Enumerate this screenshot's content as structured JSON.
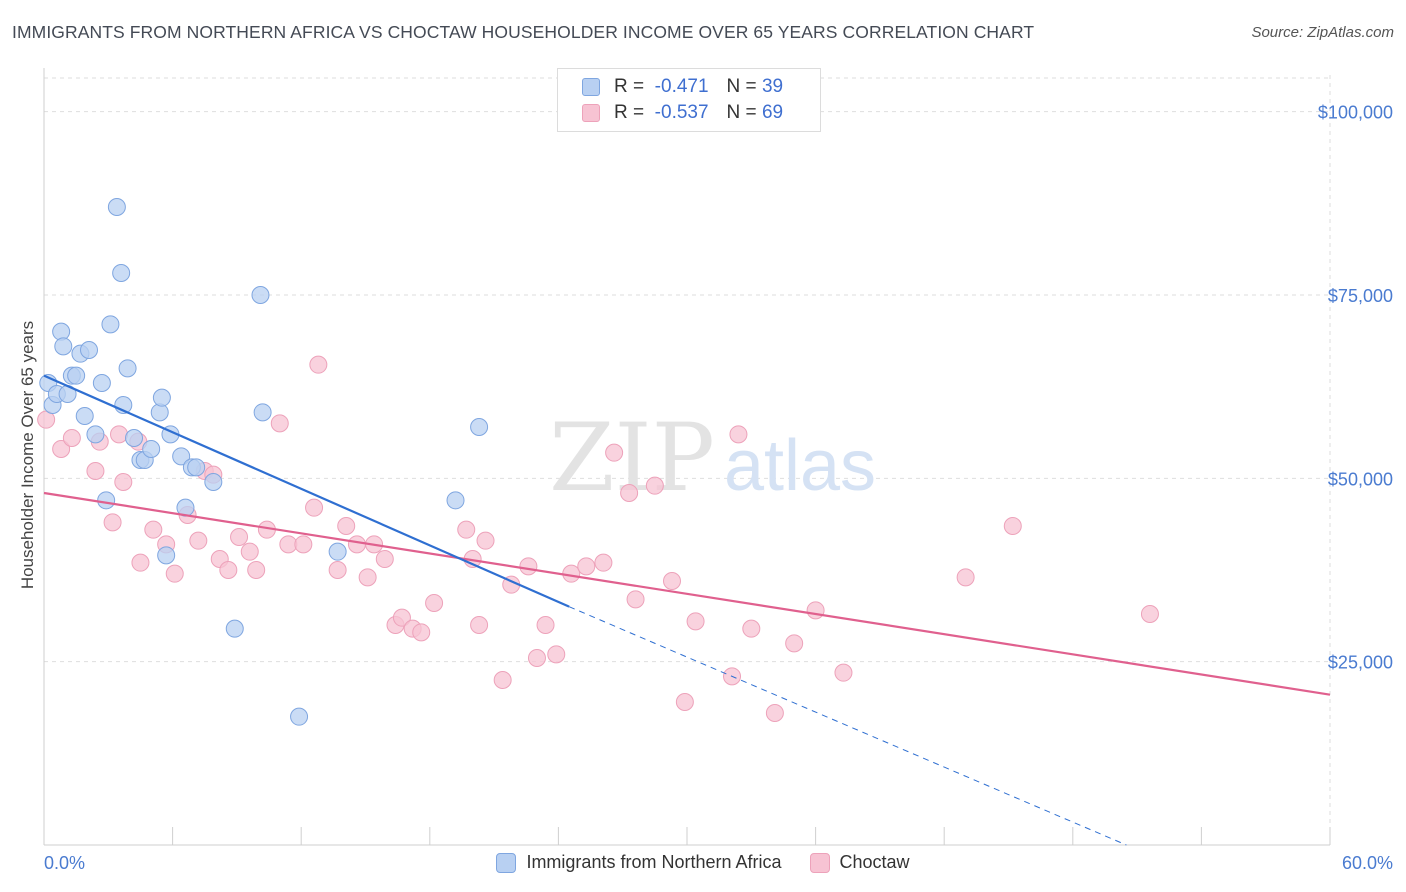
{
  "header": {
    "title": "IMMIGRANTS FROM NORTHERN AFRICA VS CHOCTAW HOUSEHOLDER INCOME OVER 65 YEARS CORRELATION CHART",
    "source": "Source: ZipAtlas.com"
  },
  "watermark": {
    "zip": "ZIP",
    "atlas": "atlas"
  },
  "legend": {
    "rows": [
      {
        "r_label": "R =",
        "r_value": "-0.471",
        "n_label": "N =",
        "n_value": "39"
      },
      {
        "r_label": "R =",
        "r_value": "-0.537",
        "n_label": "N =",
        "n_value": "69"
      }
    ]
  },
  "colors": {
    "blue_fill": "#b8d0f2",
    "blue_stroke": "#7fa6e0",
    "blue_line": "#2f6fd1",
    "pink_fill": "#f7c3d3",
    "pink_stroke": "#eda2ba",
    "pink_line": "#e0608e",
    "tick_label": "#4a7bd0",
    "grid": "#dedede"
  },
  "chart_data": {
    "type": "scatter",
    "title": "IMMIGRANTS FROM NORTHERN AFRICA VS CHOCTAW HOUSEHOLDER INCOME OVER 65 YEARS CORRELATION CHART",
    "xlabel": "",
    "ylabel": "Householder Income Over 65 years",
    "xlim": [
      0,
      60
    ],
    "ylim": [
      0,
      105000
    ],
    "x_tick_labels": [
      "0.0%",
      "60.0%"
    ],
    "y_ticks": [
      25000,
      50000,
      75000,
      100000
    ],
    "y_tick_labels": [
      "$25,000",
      "$50,000",
      "$75,000",
      "$100,000"
    ],
    "grid": true,
    "legend_position": "top-center",
    "series": [
      {
        "name": "Immigrants from Northern Africa",
        "R": -0.471,
        "N": 39,
        "points": [
          [
            0.2,
            63000
          ],
          [
            0.4,
            60000
          ],
          [
            0.6,
            61500
          ],
          [
            0.8,
            70000
          ],
          [
            0.9,
            68000
          ],
          [
            1.1,
            61500
          ],
          [
            1.3,
            64000
          ],
          [
            1.5,
            64000
          ],
          [
            1.7,
            67000
          ],
          [
            1.9,
            58500
          ],
          [
            2.1,
            67500
          ],
          [
            2.4,
            56000
          ],
          [
            2.7,
            63000
          ],
          [
            2.9,
            47000
          ],
          [
            3.1,
            71000
          ],
          [
            3.4,
            87000
          ],
          [
            3.6,
            78000
          ],
          [
            3.7,
            60000
          ],
          [
            3.9,
            65000
          ],
          [
            4.2,
            55500
          ],
          [
            4.5,
            52500
          ],
          [
            4.7,
            52500
          ],
          [
            5.0,
            54000
          ],
          [
            5.4,
            59000
          ],
          [
            5.5,
            61000
          ],
          [
            5.7,
            39500
          ],
          [
            5.9,
            56000
          ],
          [
            6.4,
            53000
          ],
          [
            6.6,
            46000
          ],
          [
            6.9,
            51500
          ],
          [
            7.1,
            51500
          ],
          [
            7.9,
            49500
          ],
          [
            8.9,
            29500
          ],
          [
            10.1,
            75000
          ],
          [
            10.2,
            59000
          ],
          [
            11.9,
            17500
          ],
          [
            13.7,
            40000
          ],
          [
            19.2,
            47000
          ],
          [
            20.3,
            57000
          ]
        ],
        "trend": {
          "x0": 0,
          "y0": 64000,
          "x1": 24.5,
          "y1": 32500,
          "dash_x1": 50.5,
          "dash_y1": -2000
        }
      },
      {
        "name": "Choctaw",
        "R": -0.537,
        "N": 69,
        "points": [
          [
            0.1,
            58000
          ],
          [
            0.8,
            54000
          ],
          [
            1.3,
            55500
          ],
          [
            2.4,
            51000
          ],
          [
            2.6,
            55000
          ],
          [
            3.2,
            44000
          ],
          [
            3.5,
            56000
          ],
          [
            3.7,
            49500
          ],
          [
            4.4,
            55000
          ],
          [
            4.5,
            38500
          ],
          [
            5.1,
            43000
          ],
          [
            5.7,
            41000
          ],
          [
            6.1,
            37000
          ],
          [
            6.7,
            45000
          ],
          [
            7.2,
            41500
          ],
          [
            7.5,
            51000
          ],
          [
            7.9,
            50500
          ],
          [
            8.2,
            39000
          ],
          [
            8.6,
            37500
          ],
          [
            9.1,
            42000
          ],
          [
            9.6,
            40000
          ],
          [
            9.9,
            37500
          ],
          [
            10.4,
            43000
          ],
          [
            11.0,
            57500
          ],
          [
            11.4,
            41000
          ],
          [
            12.1,
            41000
          ],
          [
            12.6,
            46000
          ],
          [
            12.8,
            65500
          ],
          [
            13.7,
            37500
          ],
          [
            14.1,
            43500
          ],
          [
            14.6,
            41000
          ],
          [
            15.1,
            36500
          ],
          [
            15.4,
            41000
          ],
          [
            15.9,
            39000
          ],
          [
            16.4,
            30000
          ],
          [
            16.7,
            31000
          ],
          [
            17.2,
            29500
          ],
          [
            17.6,
            29000
          ],
          [
            18.2,
            33000
          ],
          [
            19.7,
            43000
          ],
          [
            20.0,
            39000
          ],
          [
            20.3,
            30000
          ],
          [
            20.6,
            41500
          ],
          [
            21.4,
            22500
          ],
          [
            21.8,
            35500
          ],
          [
            22.6,
            38000
          ],
          [
            23.0,
            25500
          ],
          [
            23.4,
            30000
          ],
          [
            23.9,
            26000
          ],
          [
            24.6,
            37000
          ],
          [
            25.3,
            38000
          ],
          [
            26.1,
            38500
          ],
          [
            26.6,
            53500
          ],
          [
            27.3,
            48000
          ],
          [
            27.6,
            33500
          ],
          [
            28.5,
            49000
          ],
          [
            29.3,
            36000
          ],
          [
            29.9,
            19500
          ],
          [
            30.4,
            30500
          ],
          [
            32.1,
            23000
          ],
          [
            32.4,
            56000
          ],
          [
            33.0,
            29500
          ],
          [
            34.1,
            18000
          ],
          [
            35.0,
            27500
          ],
          [
            36.0,
            32000
          ],
          [
            37.3,
            23500
          ],
          [
            43.0,
            36500
          ],
          [
            45.2,
            43500
          ],
          [
            51.6,
            31500
          ]
        ],
        "trend": {
          "x0": 0,
          "y0": 48000,
          "x1": 60,
          "y1": 20500
        }
      }
    ]
  }
}
